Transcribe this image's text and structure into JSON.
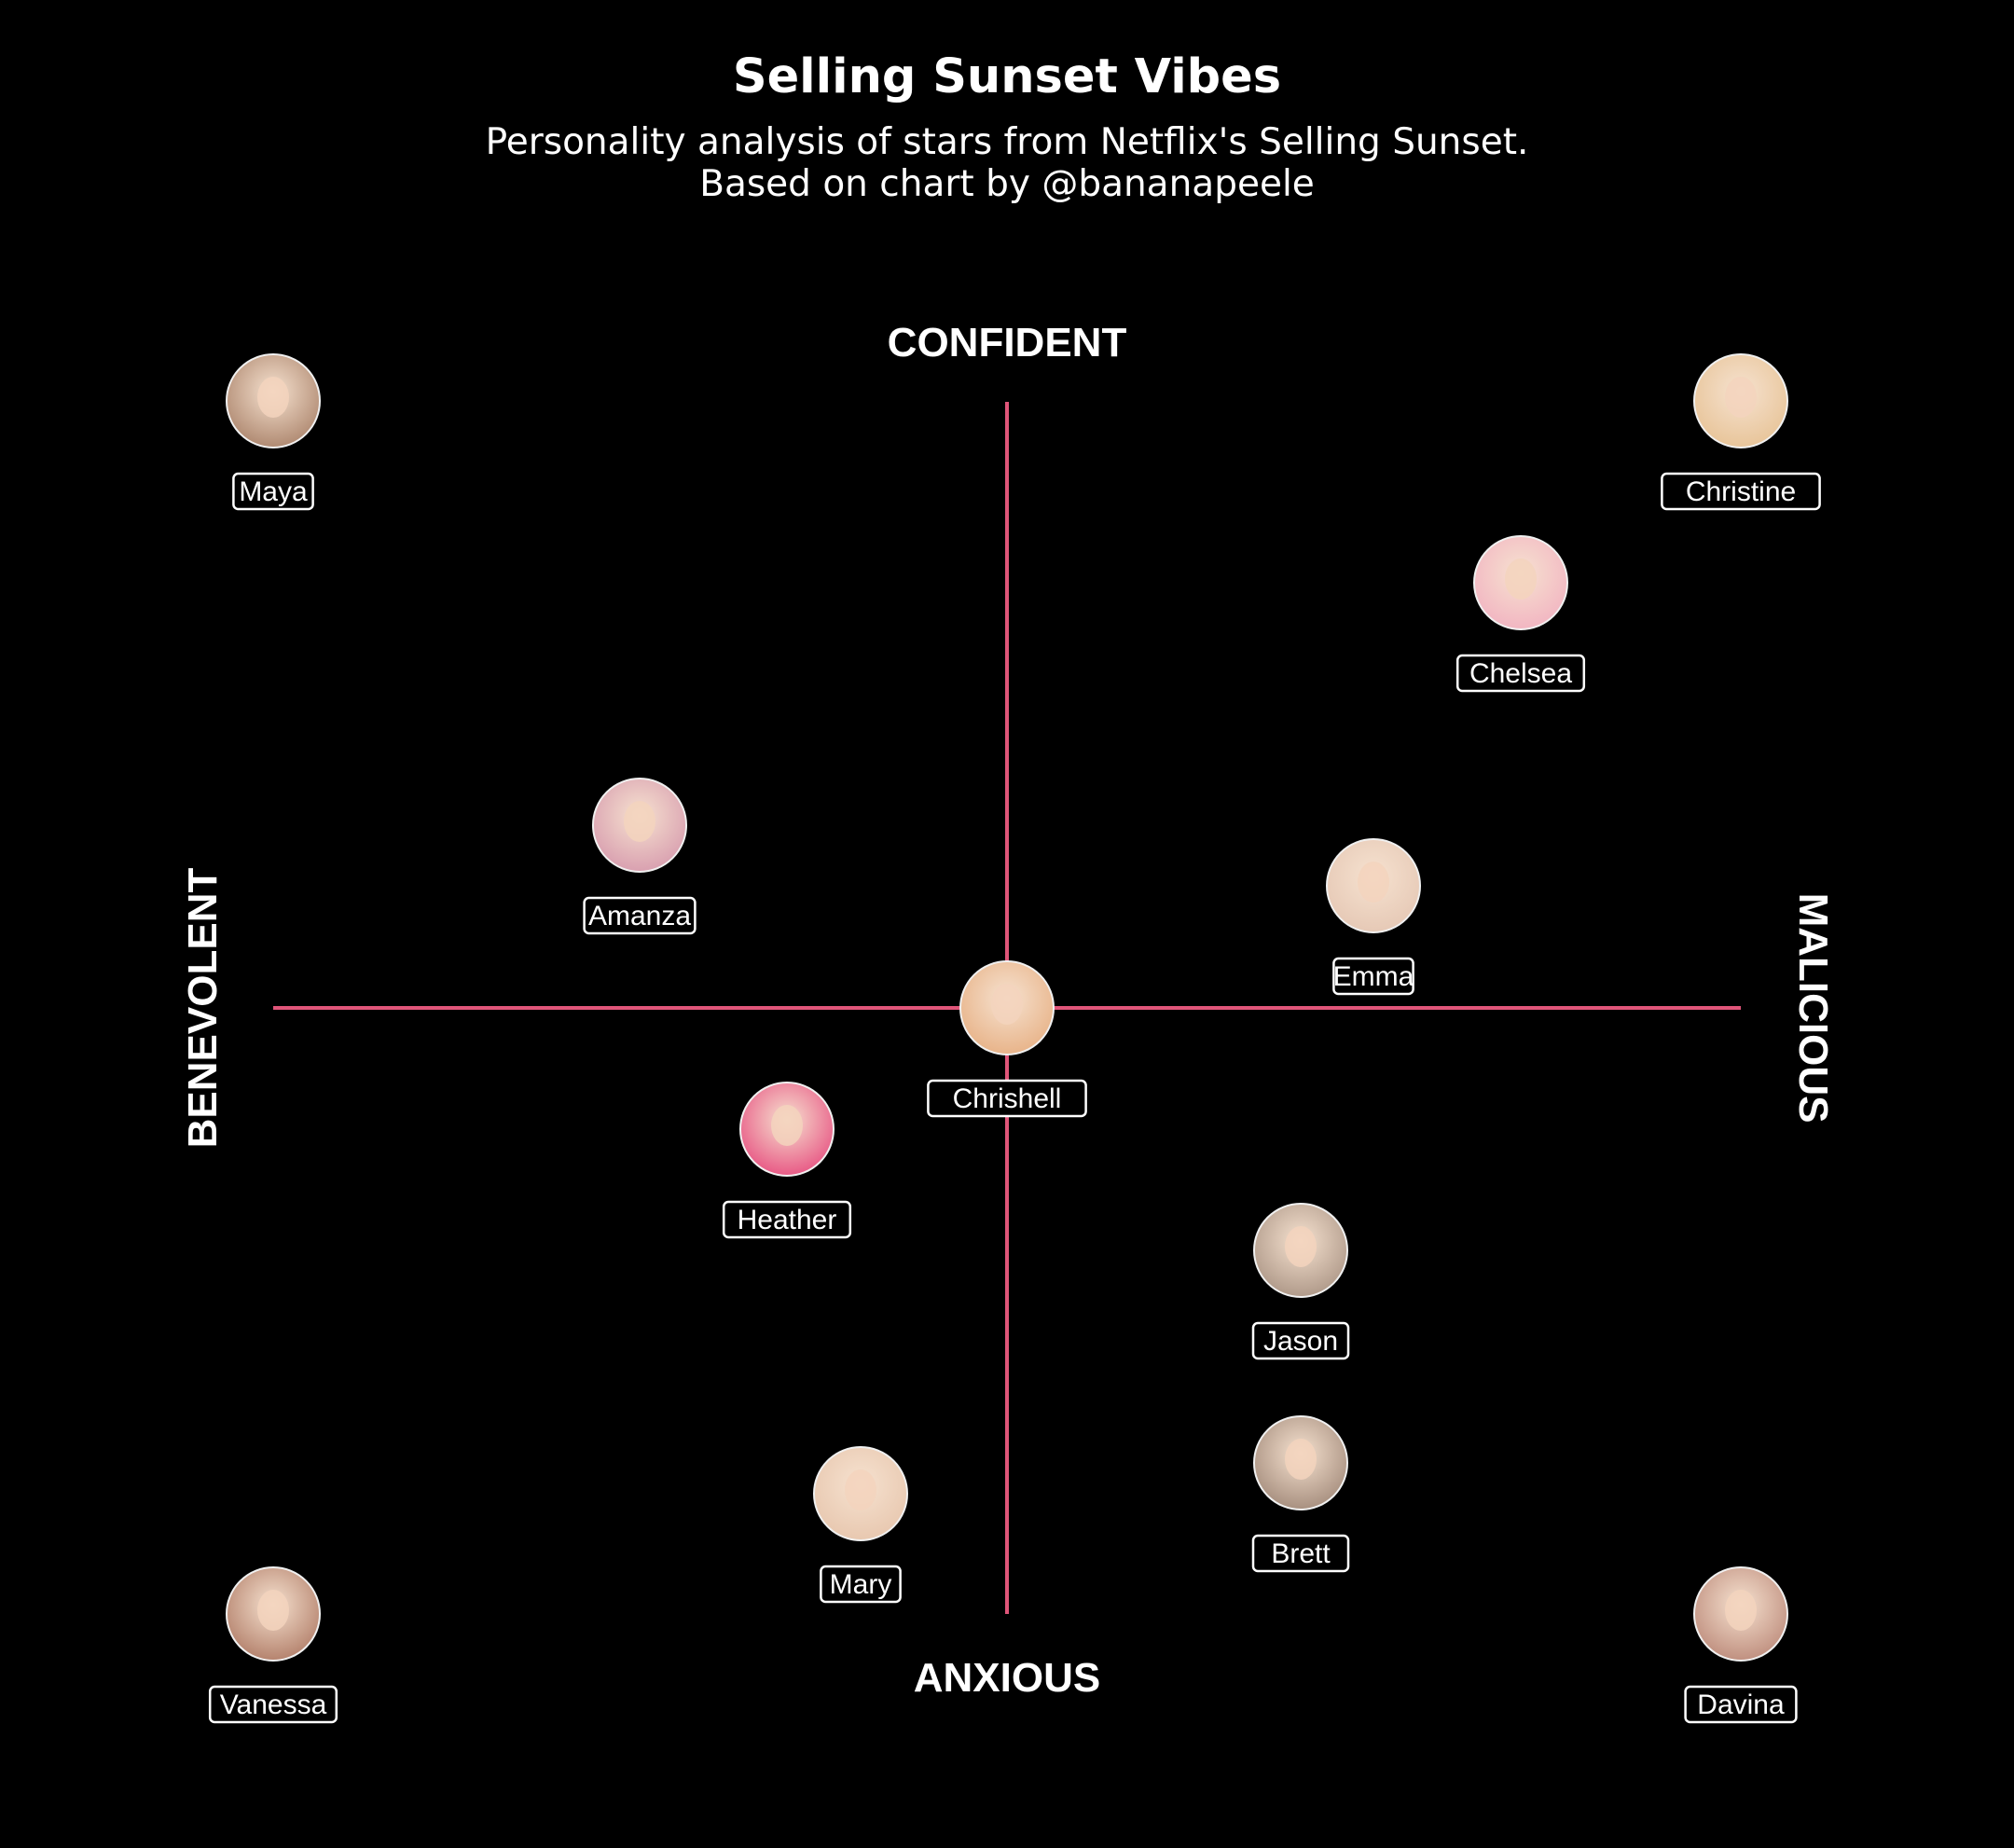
{
  "header": {
    "title": "Selling Sunset Vibes",
    "subtitle_line1": "Personality analysis of stars from Netflix's Selling Sunset.",
    "subtitle_line2": "Based on chart by @bananapeele"
  },
  "colors": {
    "background": "#000000",
    "axis_line": "#e05579",
    "text": "#ffffff"
  },
  "chart_data": {
    "type": "scatter",
    "title": "Selling Sunset Vibes",
    "subtitle": "Personality analysis of stars from Netflix's Selling Sunset. Based on chart by @bananapeele",
    "axis_labels": {
      "top": "CONFIDENT",
      "bottom": "ANXIOUS",
      "left": "BENEVOLENT",
      "right": "MALICIOUS"
    },
    "xlim": [
      -1,
      1
    ],
    "ylim": [
      -1,
      1
    ],
    "grid": false,
    "legend": "none",
    "points": [
      {
        "name": "Maya",
        "x": -1.0,
        "y": 1.0,
        "photo_color": "#b08a72"
      },
      {
        "name": "Christine",
        "x": 1.0,
        "y": 1.0,
        "photo_color": "#e8c59a"
      },
      {
        "name": "Chelsea",
        "x": 0.7,
        "y": 0.7,
        "photo_color": "#f2b6c2"
      },
      {
        "name": "Amanza",
        "x": -0.5,
        "y": 0.3,
        "photo_color": "#d9a0b0"
      },
      {
        "name": "Emma",
        "x": 0.5,
        "y": 0.2,
        "photo_color": "#e6c9b6"
      },
      {
        "name": "Chrishell",
        "x": 0.0,
        "y": 0.0,
        "photo_color": "#e8b48a"
      },
      {
        "name": "Heather",
        "x": -0.3,
        "y": -0.2,
        "photo_color": "#e85a86"
      },
      {
        "name": "Jason",
        "x": 0.4,
        "y": -0.4,
        "photo_color": "#b09a8a"
      },
      {
        "name": "Brett",
        "x": 0.4,
        "y": -0.75,
        "photo_color": "#a89080"
      },
      {
        "name": "Mary",
        "x": -0.2,
        "y": -0.8,
        "photo_color": "#e8c8b0"
      },
      {
        "name": "Vanessa",
        "x": -1.0,
        "y": -1.0,
        "photo_color": "#b5836e"
      },
      {
        "name": "Davina",
        "x": 1.0,
        "y": -1.0,
        "photo_color": "#c09080"
      }
    ]
  }
}
